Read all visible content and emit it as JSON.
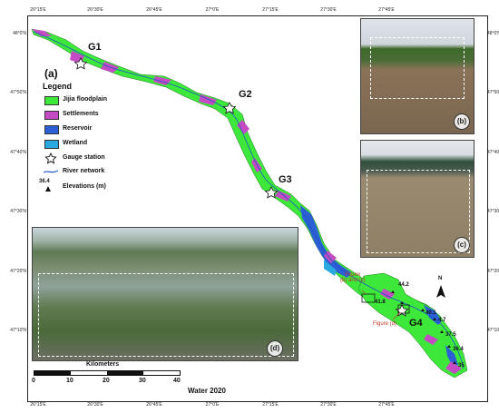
{
  "panel_label": "(a)",
  "legend": {
    "title": "Legend",
    "items": [
      {
        "label": "Jijia floodplain",
        "color": "#3ee83a"
      },
      {
        "label": "Settlements",
        "color": "#c44bc4"
      },
      {
        "label": "Reservoir",
        "color": "#2c5fd6"
      },
      {
        "label": "Wetland",
        "color": "#29a9e0"
      },
      {
        "label": "Gauge station",
        "icon": "star-icon"
      },
      {
        "label": "River network",
        "icon": "river-line-icon"
      },
      {
        "label": "Elevations (m)",
        "icon": "triangle-icon",
        "sample": "36.4"
      }
    ]
  },
  "gauges": [
    "G1",
    "G2",
    "G3",
    "G4"
  ],
  "elevations": [
    "44.2",
    "41.8",
    "40.1",
    "4.7",
    "37.5",
    "36.4",
    "35"
  ],
  "figure_labels": [
    "Figure\n(b) and (c)",
    "Figure (d)"
  ],
  "photo_labels": [
    "(b)",
    "(c)",
    "(d)"
  ],
  "lon_ticks_top": [
    "26°15'E",
    "26°30'E",
    "26°45'E",
    "27°0'E",
    "27°15'E",
    "27°30'E",
    "27°45'E"
  ],
  "lon_ticks_bottom": [
    "26°15'E",
    "26°30'E",
    "26°45'E",
    "27°0'E",
    "27°15'E",
    "27°30'E",
    "27°45'E"
  ],
  "lat_ticks_left": [
    "48°0'N",
    "47°50'N",
    "47°40'N",
    "47°30'N",
    "47°20'N",
    "47°10'N"
  ],
  "lat_ticks_right": [
    "48°0'N",
    "47°50'N",
    "47°40'N",
    "47°30'N",
    "47°20'N",
    "47°10'N"
  ],
  "scalebar": {
    "title": "Kilometers",
    "ticks": [
      "0",
      "10",
      "20",
      "30",
      "40"
    ],
    "source": "Water 2020"
  },
  "north_arrow": "N"
}
